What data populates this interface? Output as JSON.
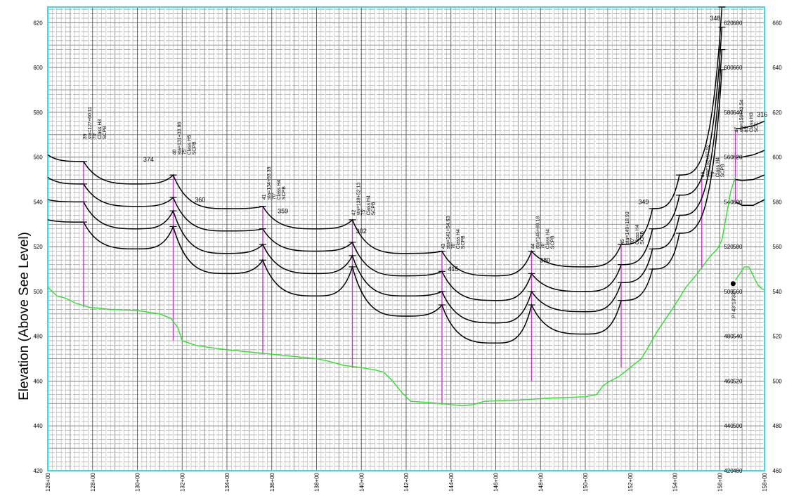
{
  "chart_data": {
    "type": "line",
    "ylabel": "Elevation (Above See Level)",
    "xlabel": "",
    "xlim": [
      12600,
      15800
    ],
    "ylim": [
      420,
      627
    ],
    "x_ticks": [
      "126+00",
      "128+00",
      "130+00",
      "132+00",
      "134+00",
      "136+00",
      "138+00",
      "140+00",
      "142+00",
      "144+00",
      "146+00",
      "148+00",
      "150+00",
      "152+00",
      "154+00",
      "156+00",
      "158+00"
    ],
    "y_ticks_left": [
      "420",
      "440",
      "460",
      "480",
      "500",
      "520",
      "540",
      "560",
      "580",
      "600",
      "620"
    ],
    "y_ticks_right": [
      "460",
      "480",
      "500",
      "520",
      "540",
      "560",
      "580",
      "600",
      "620",
      "640",
      "660"
    ],
    "series": [
      {
        "id": "ground",
        "color": "#33dd33",
        "points": [
          [
            12600,
            502
          ],
          [
            12640,
            498
          ],
          [
            12680,
            497
          ],
          [
            12720,
            495
          ],
          [
            12780,
            493
          ],
          [
            12880,
            492
          ],
          [
            13000,
            491.5
          ],
          [
            13100,
            490
          ],
          [
            13150,
            488
          ],
          [
            13180,
            484
          ],
          [
            13200,
            478
          ],
          [
            13260,
            476
          ],
          [
            13320,
            475
          ],
          [
            13400,
            474
          ],
          [
            13500,
            473
          ],
          [
            13600,
            472
          ],
          [
            13700,
            471
          ],
          [
            13800,
            470
          ],
          [
            13850,
            469
          ],
          [
            13920,
            467
          ],
          [
            14000,
            466
          ],
          [
            14060,
            465
          ],
          [
            14100,
            464
          ],
          [
            14140,
            460
          ],
          [
            14180,
            455
          ],
          [
            14220,
            451
          ],
          [
            14300,
            450.5
          ],
          [
            14350,
            450
          ],
          [
            14400,
            449.5
          ],
          [
            14450,
            449
          ],
          [
            14500,
            449.5
          ],
          [
            14550,
            451
          ],
          [
            14700,
            451.5
          ],
          [
            14850,
            452.5
          ],
          [
            15000,
            453
          ],
          [
            15050,
            454
          ],
          [
            15080,
            458
          ],
          [
            15110,
            460
          ],
          [
            15150,
            462
          ],
          [
            15200,
            466
          ],
          [
            15250,
            470
          ],
          [
            15280,
            475
          ],
          [
            15320,
            482
          ],
          [
            15360,
            488
          ],
          [
            15400,
            494
          ],
          [
            15450,
            502
          ],
          [
            15500,
            508
          ],
          [
            15560,
            516
          ],
          [
            15590,
            519
          ],
          [
            15610,
            523
          ],
          [
            15630,
            534
          ],
          [
            15650,
            545
          ],
          [
            15670,
            551
          ]
        ]
      },
      {
        "id": "ground-right",
        "color": "#33dd33",
        "points": [
          [
            15670,
            505
          ],
          [
            15690,
            508
          ],
          [
            15710,
            511
          ],
          [
            15730,
            511
          ],
          [
            15750,
            507
          ],
          [
            15770,
            503
          ],
          [
            15790,
            501
          ],
          [
            15800,
            501
          ]
        ]
      }
    ],
    "profile_lines": {
      "color": "#000000",
      "stations": [
        12600,
        12760,
        13000,
        13160,
        13400,
        13560,
        13800,
        13960,
        14200,
        14360,
        14600,
        14760,
        15000,
        15160,
        15300,
        15420,
        15610
      ],
      "grades": [
        [
          561,
          558,
          548,
          552,
          537,
          538,
          528,
          532,
          517,
          518,
          507,
          518,
          511,
          521,
          537,
          552,
          627
        ],
        [
          551,
          548,
          538,
          542,
          527,
          528,
          518,
          522,
          507,
          509,
          496,
          508,
          500,
          512,
          528,
          543,
          618
        ],
        [
          541,
          540,
          528,
          536,
          517,
          521,
          508,
          516,
          498,
          500,
          486,
          500,
          491,
          504,
          519,
          534,
          608
        ],
        [
          532,
          531,
          519,
          529,
          508,
          514,
          498,
          511,
          489,
          494,
          477,
          494,
          481,
          496,
          510,
          526,
          599
        ]
      ]
    },
    "right_segments": [
      [
        [
          15670,
          572.5
        ],
        [
          15700,
          573
        ],
        [
          15750,
          574
        ],
        [
          15800,
          576
        ]
      ],
      [
        [
          15670,
          560
        ],
        [
          15700,
          560
        ],
        [
          15750,
          561
        ],
        [
          15800,
          563
        ]
      ],
      [
        [
          15670,
          550
        ],
        [
          15700,
          549.5
        ],
        [
          15750,
          550
        ],
        [
          15800,
          552
        ]
      ],
      [
        [
          15670,
          540
        ],
        [
          15700,
          538.5
        ],
        [
          15750,
          538.5
        ],
        [
          15800,
          541
        ]
      ]
    ],
    "poles": [
      12760,
      13160,
      13560,
      13960,
      14360,
      14760,
      15160,
      15520,
      15670
    ],
    "structure_labels": [
      {
        "num": "39",
        "sta": "sta=127+60.11",
        "ht": "70'",
        "cls": "Class H3",
        "mat": "SCPB"
      },
      {
        "num": "40",
        "sta": "sta=131+33.86",
        "ht": "75'",
        "cls": "Class H5",
        "mat": "SCPB"
      },
      {
        "num": "41",
        "sta": "sta=134+93.39",
        "ht": "70'",
        "cls": "Class H4",
        "mat": "SCPB"
      },
      {
        "num": "42",
        "sta": "sta=138+52.13",
        "ht": "75'",
        "cls": "Class H4",
        "mat": "SCPB"
      },
      {
        "num": "43",
        "sta": "sta=141+54.63",
        "ht": "70'",
        "cls": "Class H4",
        "mat": "SCPB"
      },
      {
        "num": "44",
        "sta": "sta=145+69.18",
        "ht": "70'",
        "cls": "Class H4",
        "mat": "SCPB"
      },
      {
        "num": "45",
        "sta": "sta=149+18.93",
        "ht": "70'",
        "cls": "Class H4",
        "mat": "SCPB"
      },
      {
        "num": "46",
        "sta": "sta=152+97.92",
        "ht": "70'",
        "cls": "Class H4",
        "mat": "SCPB"
      },
      {
        "num": "47",
        "sta": "sta=156+43.54",
        "ht": "85'",
        "cls": "Class H3",
        "mat": "SCC"
      }
    ],
    "spans": [
      "374",
      "360",
      "359",
      "302",
      "415",
      "380",
      "349",
      "348",
      "316"
    ],
    "pi_label": "PI 43°13'33\"",
    "inner_tick_pairs": [
      [
        "620",
        "680"
      ],
      [
        "600",
        "660"
      ],
      [
        "580",
        "640"
      ],
      [
        "560",
        "620"
      ],
      [
        "540",
        "600"
      ],
      [
        "520",
        "580"
      ],
      [
        "500",
        "560"
      ],
      [
        "480",
        "540"
      ],
      [
        "460",
        "520"
      ],
      [
        "440",
        "500"
      ],
      [
        "420",
        "480"
      ]
    ]
  }
}
